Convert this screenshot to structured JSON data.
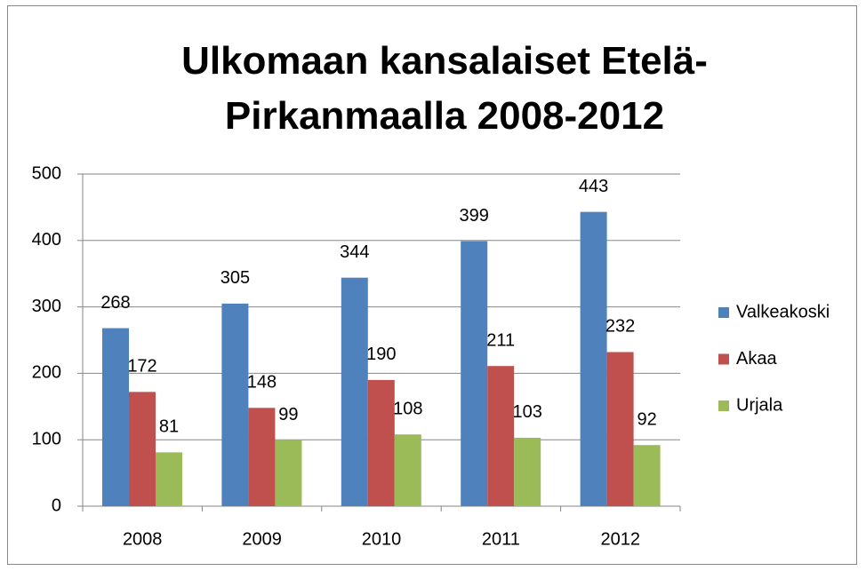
{
  "chart_data": {
    "type": "bar",
    "title": "Ulkomaan kansalaiset Etelä-Pirkanmaalla 2008-2012",
    "categories": [
      "2008",
      "2009",
      "2010",
      "2011",
      "2012"
    ],
    "series": [
      {
        "name": "Valkeakoski",
        "color": "#4f81bd",
        "values": [
          268,
          305,
          344,
          399,
          443
        ]
      },
      {
        "name": "Akaa",
        "color": "#c0504d",
        "values": [
          172,
          148,
          190,
          211,
          232
        ]
      },
      {
        "name": "Urjala",
        "color": "#9bbb59",
        "values": [
          81,
          99,
          108,
          103,
          92
        ]
      }
    ],
    "ylim": [
      0,
      500
    ],
    "yticks": [
      0,
      100,
      200,
      300,
      400,
      500
    ],
    "grid": true,
    "legend": "right"
  }
}
